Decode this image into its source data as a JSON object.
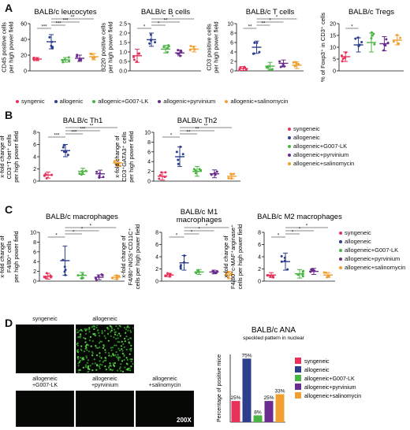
{
  "panel_letters": {
    "a": "A",
    "b": "B",
    "c": "C",
    "d": "D"
  },
  "colors": {
    "syngeneic": "#e8325a",
    "allogenic": "#2c3e8c",
    "g007": "#4bb543",
    "pyrvinium": "#6a2c8e",
    "salinomycin": "#f0a030"
  },
  "legend_A": [
    "syngenic",
    "allogenic",
    "allogenic+G007-LK",
    "allogenic+pyrvinium",
    "allogenic+salinomycin"
  ],
  "legend_B": [
    "syngeneic",
    "allogeneic",
    "allogeneic+G007-LK",
    "allogeneic+pyrvinium",
    "allogeneic+salinomycin"
  ],
  "legend_C": [
    "syngeneic",
    "allogeneic",
    "allogeneic+G007-LK",
    "allogeneic+pyrvinium",
    "allogeneic+salinomycin"
  ],
  "micro": {
    "labels": [
      "syngeneic",
      "allogeneic",
      "allogeneic\n+G007-LK",
      "allogeneic\n+pyrvinium",
      "allogeneic\n+salinomycin"
    ],
    "magnification": "200X"
  },
  "chart_data": [
    {
      "id": "A1",
      "type": "scatter",
      "title": "BALB/c leucocytes",
      "ylabel": "CD45 positive cells\nper high power field",
      "ylim": [
        0,
        60
      ],
      "yticks": [
        0,
        20,
        40,
        60
      ],
      "ytick_labels": [
        "0",
        "20",
        "40",
        "60"
      ],
      "groups": [
        {
          "mean": 15,
          "sd": 2
        },
        {
          "mean": 37,
          "sd": 9
        },
        {
          "mean": 14,
          "sd": 3
        },
        {
          "mean": 16,
          "sd": 4
        },
        {
          "mean": 18,
          "sd": 4
        }
      ],
      "brackets": [
        {
          "from": 0,
          "to": 1,
          "label": "***"
        },
        {
          "from": 1,
          "to": 2,
          "label": "***"
        },
        {
          "from": 1,
          "to": 3,
          "label": "***"
        },
        {
          "from": 1,
          "to": 4,
          "label": "**"
        }
      ]
    },
    {
      "id": "A2",
      "type": "scatter",
      "title": "BALB/c B cells",
      "ylabel": "B220 positive cells\nper high power field",
      "ylim": [
        0,
        2.5
      ],
      "yticks": [
        0,
        0.5,
        1.0,
        1.5,
        2.0,
        2.5
      ],
      "ytick_labels": [
        "0.0",
        "0.5",
        "1.0",
        "1.5",
        "2.0",
        "2.5"
      ],
      "groups": [
        {
          "mean": 0.8,
          "sd": 0.35
        },
        {
          "mean": 1.65,
          "sd": 0.35
        },
        {
          "mean": 1.15,
          "sd": 0.2
        },
        {
          "mean": 0.95,
          "sd": 0.15
        },
        {
          "mean": 1.15,
          "sd": 0.15
        }
      ],
      "brackets": [
        {
          "from": 0,
          "to": 1,
          "label": "*"
        },
        {
          "from": 1,
          "to": 2,
          "label": "*"
        },
        {
          "from": 1,
          "to": 3,
          "label": "**"
        },
        {
          "from": 1,
          "to": 4,
          "label": "*"
        }
      ]
    },
    {
      "id": "A3",
      "type": "scatter",
      "title": "BALB/c T cells",
      "ylabel": "CD3 positive cells\nper high power field",
      "ylim": [
        0,
        10
      ],
      "yticks": [
        0,
        2,
        4,
        6,
        8,
        10
      ],
      "ytick_labels": [
        "0",
        "2",
        "4",
        "6",
        "8",
        "10"
      ],
      "groups": [
        {
          "mean": 0.5,
          "sd": 0.4
        },
        {
          "mean": 5,
          "sd": 1.3
        },
        {
          "mean": 1.0,
          "sd": 0.8
        },
        {
          "mean": 1.6,
          "sd": 0.7
        },
        {
          "mean": 1.2,
          "sd": 0.7
        }
      ],
      "brackets": [
        {
          "from": 0,
          "to": 1,
          "label": "**"
        },
        {
          "from": 1,
          "to": 2,
          "label": "**"
        },
        {
          "from": 1,
          "to": 3,
          "label": "*"
        },
        {
          "from": 1,
          "to": 4,
          "label": "*"
        }
      ]
    },
    {
      "id": "A4",
      "type": "scatter",
      "title": "BALB/c Tregs",
      "ylabel": "% of Foxp3⁺ in CD3⁺ cells",
      "ylim": [
        0,
        20
      ],
      "yticks": [
        0,
        5,
        10,
        15,
        20
      ],
      "ytick_labels": [
        "0",
        "5",
        "10",
        "15",
        "20"
      ],
      "groups": [
        {
          "mean": 6,
          "sd": 2
        },
        {
          "mean": 11,
          "sd": 3
        },
        {
          "mean": 12,
          "sd": 4
        },
        {
          "mean": 11.5,
          "sd": 3
        },
        {
          "mean": 13,
          "sd": 2
        }
      ],
      "brackets": [
        {
          "from": 0,
          "to": 1,
          "label": "*"
        }
      ]
    },
    {
      "id": "B1",
      "type": "scatter",
      "title": "BALB/c Th1",
      "ylabel": "x-fold change of\nCD3⁺T-bet⁺ cells\nper high power field",
      "ylim": [
        0,
        8
      ],
      "yticks": [
        0,
        2,
        4,
        6,
        8
      ],
      "ytick_labels": [
        "0",
        "2",
        "4",
        "6",
        "8"
      ],
      "groups": [
        {
          "mean": 1,
          "sd": 0.5
        },
        {
          "mean": 5,
          "sd": 1
        },
        {
          "mean": 1.6,
          "sd": 0.5
        },
        {
          "mean": 1.2,
          "sd": 0.6
        },
        {
          "mean": 3,
          "sd": 0.5
        }
      ],
      "brackets": [
        {
          "from": 0,
          "to": 1,
          "label": "***"
        },
        {
          "from": 1,
          "to": 2,
          "label": "***"
        },
        {
          "from": 1,
          "to": 3,
          "label": "***"
        },
        {
          "from": 1,
          "to": 4,
          "label": "**"
        }
      ]
    },
    {
      "id": "B2",
      "type": "scatter",
      "title": "BALB/c Th2",
      "ylabel": "x-fold change of\nCD3⁺GATA3⁺ cells\nper high power field",
      "ylim": [
        0,
        10
      ],
      "yticks": [
        0,
        2,
        4,
        6,
        8,
        10
      ],
      "ytick_labels": [
        "0",
        "2",
        "4",
        "6",
        "8",
        "10"
      ],
      "groups": [
        {
          "mean": 1,
          "sd": 0.8
        },
        {
          "mean": 5,
          "sd": 2
        },
        {
          "mean": 2,
          "sd": 1
        },
        {
          "mean": 1.5,
          "sd": 0.8
        },
        {
          "mean": 1,
          "sd": 0.5
        }
      ],
      "brackets": [
        {
          "from": 0,
          "to": 1,
          "label": "*"
        },
        {
          "from": 1,
          "to": 2,
          "label": "**"
        },
        {
          "from": 1,
          "to": 3,
          "label": "**"
        },
        {
          "from": 1,
          "to": 4,
          "label": "**"
        }
      ]
    },
    {
      "id": "C1",
      "type": "scatter",
      "title": "BALB/c macrophages",
      "ylabel": "x-fold change of\nF4/80⁺ cells\nper high power field",
      "ylim": [
        0,
        10
      ],
      "yticks": [
        0,
        2,
        4,
        6,
        8,
        10
      ],
      "ytick_labels": [
        "0",
        "2",
        "4",
        "6",
        "8",
        "10"
      ],
      "groups": [
        {
          "mean": 1,
          "sd": 0.6
        },
        {
          "mean": 4.2,
          "sd": 3
        },
        {
          "mean": 1.2,
          "sd": 0.6
        },
        {
          "mean": 0.8,
          "sd": 0.5
        },
        {
          "mean": 0.8,
          "sd": 0.4
        }
      ],
      "brackets": [
        {
          "from": 0,
          "to": 1,
          "label": "*"
        },
        {
          "from": 1,
          "to": 2,
          "label": "*"
        },
        {
          "from": 1,
          "to": 3,
          "label": "*"
        },
        {
          "from": 1,
          "to": 4,
          "label": "*"
        }
      ]
    },
    {
      "id": "C2",
      "type": "scatter",
      "title": "BALB/c M1\nmacrophages",
      "ylabel": "x-fold change of\nF4/80⁺iNOS⁺CD11C⁺\ncells per high power field",
      "ylim": [
        0,
        8
      ],
      "yticks": [
        0,
        2,
        4,
        6,
        8
      ],
      "ytick_labels": [
        "0",
        "2",
        "4",
        "6",
        "8"
      ],
      "groups": [
        {
          "mean": 1,
          "sd": 0.3
        },
        {
          "mean": 3,
          "sd": 1.2
        },
        {
          "mean": 1.5,
          "sd": 0.4
        },
        {
          "mean": 1.5,
          "sd": 0.3
        },
        {
          "mean": 1,
          "sd": 0.6
        }
      ],
      "brackets": [
        {
          "from": 0,
          "to": 1,
          "label": "*"
        },
        {
          "from": 1,
          "to": 2,
          "label": "*"
        },
        {
          "from": 1,
          "to": 3,
          "label": "*"
        },
        {
          "from": 1,
          "to": 4,
          "label": "*"
        }
      ]
    },
    {
      "id": "C3",
      "type": "scatter",
      "title": "BALB/c M2 macrophages",
      "ylabel": "x-fold change of\nF4/80⁺c-MAF⁺arginase⁺\ncells per high power field",
      "ylim": [
        0,
        8
      ],
      "yticks": [
        0,
        2,
        4,
        6,
        8
      ],
      "ytick_labels": [
        "0",
        "2",
        "4",
        "6",
        "8"
      ],
      "groups": [
        {
          "mean": 1,
          "sd": 0.4
        },
        {
          "mean": 3.2,
          "sd": 1.4
        },
        {
          "mean": 1.2,
          "sd": 0.7
        },
        {
          "mean": 1.6,
          "sd": 0.5
        },
        {
          "mean": 1,
          "sd": 0.4
        }
      ],
      "brackets": [
        {
          "from": 0,
          "to": 1,
          "label": "*"
        },
        {
          "from": 1,
          "to": 2,
          "label": "*"
        },
        {
          "from": 1,
          "to": 3,
          "label": "*"
        },
        {
          "from": 1,
          "to": 4,
          "label": "*"
        }
      ]
    },
    {
      "id": "D",
      "type": "bar",
      "title": "BALB/c ANA",
      "subtitle": "speckled pattern in nuclear",
      "ylabel": "Percentage of positive mice",
      "categories": [
        "syngeneic",
        "allogeneic",
        "allogeneic+G007-LK",
        "allogeneic+pyrvinium",
        "allogeneic+salinomycin"
      ],
      "values": [
        25,
        75,
        8,
        25,
        33
      ],
      "value_labels": [
        "25%",
        "75%",
        "8%",
        "25%",
        "33%"
      ],
      "ylim": [
        0,
        80
      ]
    }
  ]
}
